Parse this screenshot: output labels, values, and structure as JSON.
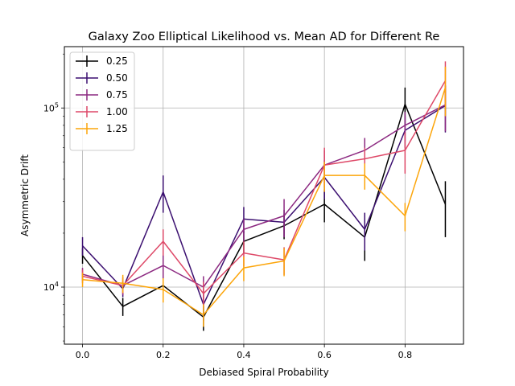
{
  "chart_data": {
    "type": "line",
    "title": "Galaxy Zoo Elliptical Likelihood vs. Mean AD for Different Re",
    "xlabel": "Debiased Spiral Probability",
    "ylabel": "Asymmetric Drift",
    "xlim": [
      -0.045,
      0.945
    ],
    "ylim": [
      4800,
      220000
    ],
    "yscale": "log",
    "grid": true,
    "legend_position": "top-left",
    "x": [
      0.0,
      0.1,
      0.2,
      0.3,
      0.4,
      0.5,
      0.6,
      0.7,
      0.8,
      0.9
    ],
    "xticks": [
      0.0,
      0.2,
      0.4,
      0.6,
      0.8
    ],
    "xtick_labels": [
      "0.0",
      "0.2",
      "0.4",
      "0.6",
      "0.8"
    ],
    "yticks": [
      10000,
      100000
    ],
    "ytick_labels": [
      {
        "base": "10",
        "exp": "4"
      },
      {
        "base": "10",
        "exp": "5"
      }
    ],
    "series": [
      {
        "name": "0.25",
        "color": "#000000",
        "values": [
          15000,
          7800,
          10200,
          6800,
          18000,
          22000,
          29000,
          19000,
          105000,
          29000
        ],
        "errors": [
          1500,
          900,
          1200,
          1100,
          2500,
          3500,
          6000,
          5000,
          25000,
          10000
        ]
      },
      {
        "name": "0.50",
        "color": "#3b0f70",
        "values": [
          17000,
          9800,
          34000,
          8000,
          24000,
          23000,
          41000,
          21000,
          75000,
          103000
        ],
        "errors": [
          2000,
          1000,
          8000,
          1500,
          4000,
          4000,
          10000,
          5000,
          15000,
          30000
        ]
      },
      {
        "name": "0.75",
        "color": "#8c2981",
        "values": [
          11800,
          10200,
          13200,
          10000,
          21000,
          25000,
          48000,
          58000,
          80000,
          104000
        ],
        "errors": [
          1000,
          1200,
          2000,
          1500,
          3000,
          6000,
          10000,
          10000,
          15000,
          30000
        ]
      },
      {
        "name": "1.00",
        "color": "#de4968",
        "values": [
          11500,
          10200,
          18000,
          9200,
          15500,
          14200,
          48000,
          52000,
          58000,
          142000
        ],
        "errors": [
          1000,
          1000,
          3000,
          1500,
          2500,
          2500,
          12000,
          8000,
          15000,
          40000
        ]
      },
      {
        "name": "1.25",
        "color": "#fca50a",
        "values": [
          11000,
          10500,
          9700,
          7000,
          12800,
          14000,
          42000,
          42000,
          25000,
          130000
        ],
        "errors": [
          1000,
          1200,
          1500,
          1000,
          2000,
          2500,
          8000,
          7000,
          4500,
          40000
        ]
      }
    ]
  }
}
